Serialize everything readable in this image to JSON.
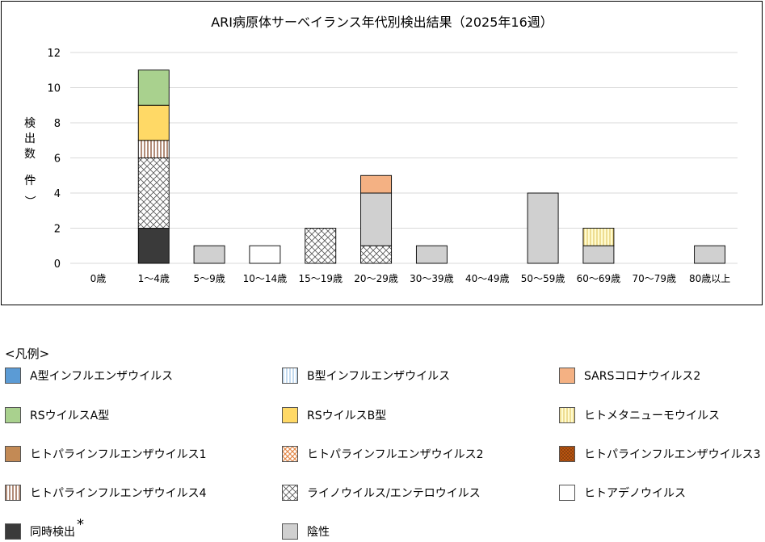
{
  "chart_data": {
    "type": "bar",
    "stacked": true,
    "title": "ARI病原体サーベイランス年代別検出結果（2025年16週）",
    "ylabel": "検出数（件）",
    "ylim": [
      0,
      12
    ],
    "yticks": [
      0,
      2,
      4,
      6,
      8,
      10,
      12
    ],
    "grid": true,
    "categories": [
      "0歳",
      "1～4歳",
      "5～9歳",
      "10～14歳",
      "15～19歳",
      "20～29歳",
      "30～39歳",
      "40～49歳",
      "50～59歳",
      "60～69歳",
      "70～79歳",
      "80歳以上"
    ],
    "series": [
      {
        "name": "同時検出",
        "key": "concurrent",
        "values": [
          0,
          2,
          0,
          0,
          0,
          0,
          0,
          0,
          0,
          0,
          0,
          0
        ]
      },
      {
        "name": "ライノウイルス/エンテロウイルス",
        "key": "rhino",
        "values": [
          0,
          4,
          0,
          0,
          2,
          1,
          0,
          0,
          0,
          0,
          0,
          0
        ]
      },
      {
        "name": "ヒトパラインフルエンザウイルス4",
        "key": "hpiv4",
        "values": [
          0,
          1,
          0,
          0,
          0,
          0,
          0,
          0,
          0,
          0,
          0,
          0
        ]
      },
      {
        "name": "RSウイルスB型",
        "key": "rsvb",
        "values": [
          0,
          2,
          0,
          0,
          0,
          0,
          0,
          0,
          0,
          0,
          0,
          0
        ]
      },
      {
        "name": "RSウイルスA型",
        "key": "rsva",
        "values": [
          0,
          2,
          0,
          0,
          0,
          0,
          0,
          0,
          0,
          0,
          0,
          0
        ]
      },
      {
        "name": "陰性",
        "key": "negative",
        "values": [
          0,
          0,
          1,
          0,
          0,
          3,
          1,
          0,
          4,
          1,
          0,
          1
        ]
      },
      {
        "name": "SARSコロナウイルス2",
        "key": "sars",
        "values": [
          0,
          0,
          0,
          0,
          0,
          1,
          0,
          0,
          0,
          0,
          0,
          0
        ]
      },
      {
        "name": "ヒトメタニューモウイルス",
        "key": "hmpv",
        "values": [
          0,
          0,
          0,
          0,
          0,
          0,
          0,
          0,
          0,
          1,
          0,
          0
        ]
      },
      {
        "name": "ヒトアデノウイルス",
        "key": "adeno",
        "values": [
          0,
          0,
          0,
          1,
          0,
          0,
          0,
          0,
          0,
          0,
          0,
          0
        ]
      }
    ]
  },
  "legend": {
    "title": "<凡例>",
    "asterisk": "*",
    "items": [
      {
        "label": "A型インフルエンザウイルス",
        "key": "flua",
        "color": "#5b9bd5"
      },
      {
        "label": "B型インフルエンザウイルス",
        "key": "flub",
        "color": "#9dc3e6"
      },
      {
        "label": "SARSコロナウイルス2",
        "key": "sars",
        "color": "#f4b183"
      },
      {
        "label": "RSウイルスA型",
        "key": "rsva",
        "color": "#a9d18e"
      },
      {
        "label": "RSウイルスB型",
        "key": "rsvb",
        "color": "#ffd966"
      },
      {
        "label": "ヒトメタニューモウイルス",
        "key": "hmpv",
        "color": "#e2c96a"
      },
      {
        "label": "ヒトパラインフルエンザウイルス1",
        "key": "hpiv1",
        "color": "#c38a55"
      },
      {
        "label": "ヒトパラインフルエンザウイルス2",
        "key": "hpiv2",
        "color": "#e58a4a"
      },
      {
        "label": "ヒトパラインフルエンザウイルス3",
        "key": "hpiv3",
        "color": "#843c0c"
      },
      {
        "label": "ヒトパラインフルエンザウイルス4",
        "key": "hpiv4",
        "color": "#7f3f1f"
      },
      {
        "label": "ライノウイルス/エンテロウイルス",
        "key": "rhino",
        "color": "#404040"
      },
      {
        "label": "ヒトアデノウイルス",
        "key": "adeno",
        "color": "#ffffff"
      },
      {
        "label": "同時検出",
        "key": "concurrent",
        "color": "#3a3a3a"
      },
      {
        "label": "陰性",
        "key": "negative",
        "color": "#d0d0d0"
      }
    ]
  }
}
